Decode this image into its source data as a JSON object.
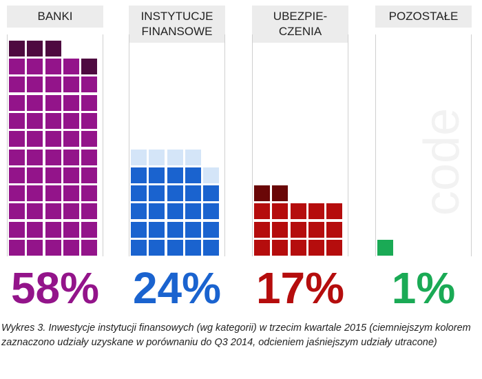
{
  "chart_data": {
    "type": "waffle",
    "unit": "percent",
    "categories": [
      {
        "label": "BANKI",
        "value": 58,
        "value_text": "58%",
        "gained": 4,
        "lost": 0,
        "color": "#93148a",
        "gained_color": "#4e0a40",
        "lost_color": "#e6c6e3"
      },
      {
        "label": "INSTYTUCJE\nFINANSOWE",
        "value": 24,
        "value_text": "24%",
        "gained": 0,
        "lost": 5,
        "color": "#1a63cf",
        "gained_color": "#0c3a80",
        "lost_color": "#d4e5f8"
      },
      {
        "label": "UBEZPIE-\nCZENIA",
        "value": 17,
        "value_text": "17%",
        "gained": 2,
        "lost": 0,
        "color": "#b50d0d",
        "gained_color": "#6a0707",
        "lost_color": "#f1cccc"
      },
      {
        "label": "POZOSTAŁE",
        "value": 1,
        "value_text": "1%",
        "gained": 0,
        "lost": 0,
        "color": "#1aaa55",
        "gained_color": "#0c6a33",
        "lost_color": "#cdeedd"
      }
    ]
  },
  "watermark": "code",
  "caption": "Wykres 3. Inwestycje instytucji finansowych (wg kategorii) w trzecim kwartale 2015 (ciemniejszym kolorem zaznaczono udziały uzyskane w porównaniu do Q3 2014, odcieniem jaśniejszym udziały utracone)"
}
